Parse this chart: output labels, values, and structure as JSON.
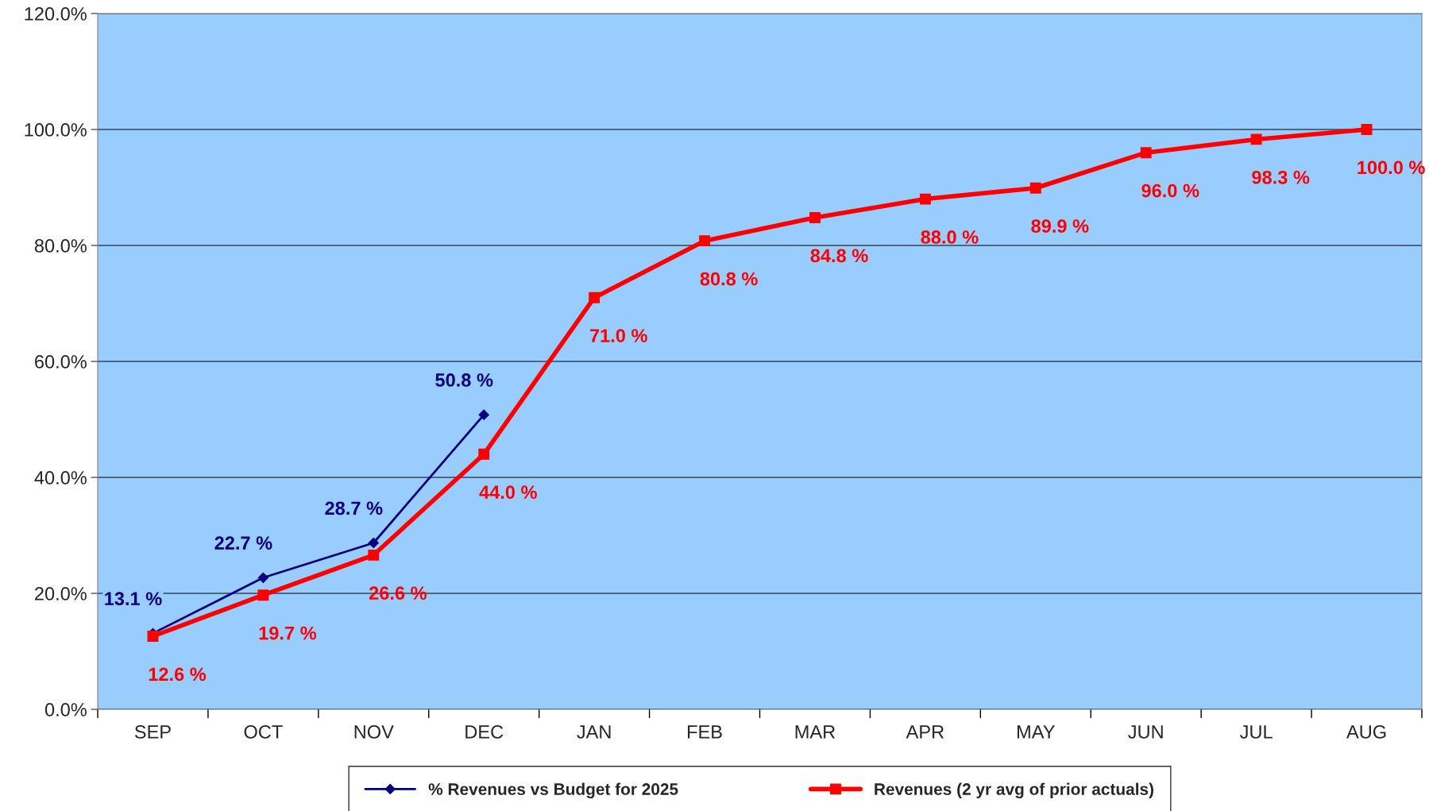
{
  "chart_data": {
    "type": "line",
    "categories": [
      "SEP",
      "OCT",
      "NOV",
      "DEC",
      "JAN",
      "FEB",
      "MAR",
      "APR",
      "MAY",
      "JUN",
      "JUL",
      "AUG"
    ],
    "series": [
      {
        "name": "% Revenues vs Budget for 2025",
        "color": "#000080",
        "marker": "diamond",
        "values": [
          13.1,
          22.7,
          28.7,
          50.8,
          null,
          null,
          null,
          null,
          null,
          null,
          null,
          null
        ],
        "value_labels": [
          "13.1 %",
          "22.7 %",
          "28.7 %",
          "50.8 %",
          null,
          null,
          null,
          null,
          null,
          null,
          null,
          null
        ]
      },
      {
        "name": "Revenues (2 yr avg of prior actuals)",
        "color": "#ff0000",
        "marker": "square",
        "values": [
          12.6,
          19.7,
          26.6,
          44.0,
          71.0,
          80.8,
          84.8,
          88.0,
          89.9,
          96.0,
          98.3,
          100.0
        ],
        "value_labels": [
          "12.6 %",
          "19.7 %",
          "26.6 %",
          "44.0 %",
          "71.0 %",
          "80.8 %",
          "84.8 %",
          "88.0 %",
          "89.9 %",
          "96.0 %",
          "98.3 %",
          "100.0 %"
        ]
      }
    ],
    "ylim": [
      0,
      120
    ],
    "yticks": [
      {
        "value": 0,
        "label": "0.0%"
      },
      {
        "value": 20,
        "label": "20.0%"
      },
      {
        "value": 40,
        "label": "40.0%"
      },
      {
        "value": 60,
        "label": "60.0%"
      },
      {
        "value": 80,
        "label": "80.0%"
      },
      {
        "value": 100,
        "label": "100.0%"
      },
      {
        "value": 120,
        "label": "120.0%"
      }
    ],
    "grid": "y",
    "legend": "bottom"
  }
}
